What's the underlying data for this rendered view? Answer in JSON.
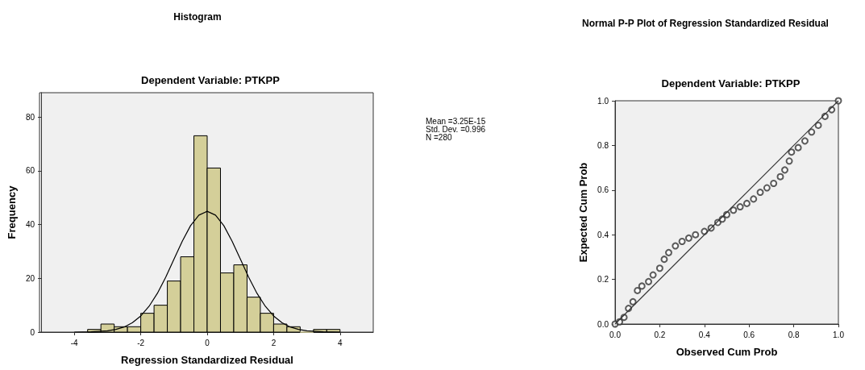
{
  "chart_data": [
    {
      "type": "histogram",
      "title": "Histogram",
      "subtitle": "Dependent Variable: PTKPP",
      "xlabel": "Regression Standardized Residual",
      "ylabel": "Frequency",
      "bins": [
        -3.6,
        -3.2,
        -2.8,
        -2.4,
        -2.0,
        -1.6,
        -1.2,
        -0.8,
        -0.4,
        0,
        0.4,
        0.8,
        1.2,
        1.6,
        2.0,
        2.4,
        2.8,
        3.2,
        3.6,
        4.0
      ],
      "values": [
        1,
        3,
        2,
        2,
        7,
        10,
        19,
        28,
        73,
        61,
        22,
        25,
        13,
        7,
        3,
        2,
        0,
        1,
        1
      ],
      "color": "#d4cf99",
      "xlim": [
        -5,
        5
      ],
      "xticks": [
        -4,
        -2,
        0,
        2,
        4
      ],
      "ylim": [
        0,
        89
      ],
      "yticks": [
        0,
        20,
        40,
        60,
        80
      ],
      "annotations": [
        "Mean =3.25E-15",
        "Std. Dev. =0.996",
        "N =280"
      ],
      "series": [
        {
          "type": "line",
          "color": "#000000",
          "marker": "none",
          "x": [
            -4,
            -3.5,
            -3,
            -2.75,
            -2.5,
            -2.25,
            -2,
            -1.75,
            -1.5,
            -1.25,
            -1,
            -0.75,
            -0.5,
            -0.25,
            0,
            0.25,
            0.5,
            0.75,
            1,
            1.25,
            1.5,
            1.75,
            2,
            2.25,
            2.5,
            2.75,
            3,
            3.5,
            4
          ],
          "values": [
            0,
            0.1,
            0.5,
            1,
            1.9,
            3.5,
            6,
            9.6,
            14.4,
            20.4,
            27.1,
            33.8,
            39.6,
            43.5,
            44.9,
            43.5,
            39.6,
            33.8,
            27.1,
            20.4,
            14.4,
            9.6,
            6,
            3.5,
            1.9,
            1,
            0.5,
            0.1,
            0
          ]
        }
      ]
    },
    {
      "type": "scatter",
      "title": "Normal P-P Plot of Regression Standardized Residual",
      "subtitle": "Dependent Variable: PTKPP",
      "xlabel": "Observed Cum Prob",
      "ylabel": "Expected Cum Prob",
      "xlim": [
        0,
        1
      ],
      "ylim": [
        0,
        1
      ],
      "xticks": [
        {
          "value": 0,
          "label": "0.0"
        },
        0.2,
        0.4,
        0.6,
        0.8,
        {
          "value": 1,
          "label": "1.0"
        }
      ],
      "yticks": [
        {
          "value": 0,
          "label": "0.0"
        },
        0.2,
        0.4,
        0.6,
        0.8,
        {
          "value": 1,
          "label": "1.0"
        }
      ],
      "series": [
        {
          "type": "scatter",
          "color": "#333333",
          "marker": "circle",
          "x": [
            0,
            0.02,
            0.04,
            0.06,
            0.08,
            0.1,
            0.12,
            0.15,
            0.17,
            0.2,
            0.22,
            0.24,
            0.27,
            0.3,
            0.33,
            0.36,
            0.4,
            0.43,
            0.46,
            0.48,
            0.5,
            0.53,
            0.56,
            0.59,
            0.62,
            0.65,
            0.68,
            0.71,
            0.74,
            0.76,
            0.78,
            0.79,
            0.82,
            0.85,
            0.88,
            0.91,
            0.94,
            0.97,
            1
          ],
          "values": [
            0,
            0.01,
            0.03,
            0.07,
            0.1,
            0.15,
            0.17,
            0.19,
            0.22,
            0.25,
            0.29,
            0.32,
            0.35,
            0.37,
            0.385,
            0.4,
            0.415,
            0.43,
            0.455,
            0.47,
            0.49,
            0.51,
            0.525,
            0.54,
            0.56,
            0.59,
            0.61,
            0.63,
            0.66,
            0.69,
            0.73,
            0.77,
            0.79,
            0.82,
            0.86,
            0.89,
            0.93,
            0.96,
            1
          ]
        },
        {
          "type": "line",
          "color": "#333333",
          "marker": "none",
          "x": [
            0,
            1
          ],
          "values": [
            0,
            1
          ]
        }
      ]
    }
  ]
}
